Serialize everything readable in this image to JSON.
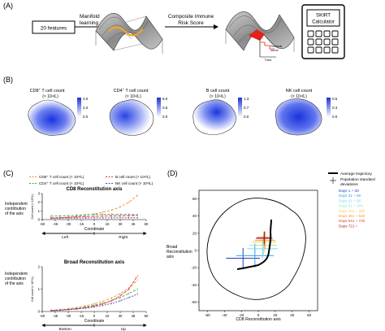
{
  "panel_a": {
    "letter": "(A)",
    "features_box": "20 features",
    "manifold_label": [
      "Manifold",
      "learning"
    ],
    "risk_label": [
      "Composite Immune",
      "Risk Score"
    ],
    "survival_label": [
      "Survival",
      "curve"
    ],
    "time_label": "Time",
    "calculator_label": [
      "SKIRT",
      "Calculator"
    ]
  },
  "panel_b": {
    "letter": "(B)",
    "maps": [
      {
        "title_pre": "CD8",
        "title_sup": "+",
        "title_post": " T cell count",
        "unit": "(× 10⁹/L)",
        "ticks": [
          "4.0",
          "2.0",
          "0.0"
        ]
      },
      {
        "title_pre": "CD4",
        "title_sup": "+",
        "title_post": " T cell count",
        "unit": "(× 10⁹/L)",
        "ticks": [
          "8.0",
          "0.5",
          "0.0"
        ]
      },
      {
        "title_pre": "B cell count",
        "title_sup": "",
        "title_post": "",
        "unit": "(× 10⁹/L)",
        "ticks": [
          "1.3",
          "0.7",
          "0.0"
        ]
      },
      {
        "title_pre": "NK cell count",
        "title_sup": "",
        "title_post": "",
        "unit": "(× 10⁹/L)",
        "ticks": [
          "0.5",
          "0.3",
          "0.0"
        ]
      }
    ]
  },
  "panel_c": {
    "letter": "(C)",
    "legend": [
      {
        "label": "CD8⁺ T cell count (× 10⁹/L)",
        "color": "#f28c28"
      },
      {
        "label": "B cell count (× 10⁹/L)",
        "color": "#e0322f"
      },
      {
        "label": "CD4⁺ T cell count (× 10⁹/L)",
        "color": "#34a853"
      },
      {
        "label": "NK cell count (× 10⁹/L)",
        "color": "#6b3fa0"
      }
    ],
    "side_label": [
      "Independent",
      "contribution",
      "of the axis"
    ],
    "ylabel": "Cell count (× 10⁹/L)",
    "xlabel": "Coordinate",
    "top": {
      "title": "CD8 Reconstitution axis",
      "x_ticks": [
        "-60",
        "-45",
        "-30",
        "-15",
        "0",
        "15",
        "30",
        "45",
        "60"
      ],
      "y_ticks": [
        "0",
        "1",
        "2",
        "3"
      ],
      "direction_left": "Left",
      "direction_right": "Right"
    },
    "bottom": {
      "title": "Broad Reconstitution axis",
      "x_ticks": [
        "-60",
        "-45",
        "-30",
        "-15",
        "0",
        "15",
        "30",
        "45",
        "60"
      ],
      "y_ticks": [
        "0",
        "1",
        "2"
      ],
      "direction_left": "Bottom",
      "direction_right": "Up"
    }
  },
  "panel_d": {
    "letter": "(D)",
    "legend_lines": [
      "Average trajectory",
      "Population standard",
      "deviations"
    ],
    "days": [
      {
        "label": "Days 1 ~ 30",
        "color": "#1f3fbf"
      },
      {
        "label": "Days 31 ~ 60",
        "color": "#34a0e0"
      },
      {
        "label": "Days 61 ~ 90",
        "color": "#7fd6f5"
      },
      {
        "label": "Days 91 ~ 180",
        "color": "#9be7c4"
      },
      {
        "label": "Days 181 ~ 360",
        "color": "#f2d34a"
      },
      {
        "label": "Days 361 ~ 540",
        "color": "#f29a2e"
      },
      {
        "label": "Days 541 ~ 720",
        "color": "#e03a2f"
      },
      {
        "label": "Days 721 ~",
        "color": "#9b1c1c"
      }
    ],
    "ylabel": [
      "Broad",
      "Reconstitution",
      "axis"
    ],
    "xlabel": "CD8 Reconstitution axis",
    "x_ticks": [
      "-60",
      "-40",
      "-20",
      "0",
      "20",
      "40",
      "60"
    ],
    "y_ticks": [
      "60",
      "40",
      "20",
      "0",
      "-20",
      "-40",
      "-60"
    ]
  },
  "chart_data": [
    {
      "type": "line",
      "title": "CD8 Reconstitution axis",
      "xlabel": "Coordinate",
      "ylabel": "Cell count (× 10⁹/L)",
      "x": [
        -50,
        -40,
        -30,
        -20,
        -10,
        0,
        10,
        20,
        30,
        40,
        50
      ],
      "xlim": [
        -60,
        60
      ],
      "ylim": [
        0,
        3
      ],
      "series": [
        {
          "name": "CD8⁺ T cell count (× 10⁹/L)",
          "values": [
            0.15,
            0.2,
            0.28,
            0.38,
            0.5,
            0.65,
            0.85,
            1.1,
            1.45,
            2.0,
            2.8
          ]
        },
        {
          "name": "CD4⁺ T cell count (× 10⁹/L)",
          "values": [
            0.4,
            0.42,
            0.45,
            0.5,
            0.55,
            0.6,
            0.62,
            0.62,
            0.6,
            0.58,
            0.55
          ]
        },
        {
          "name": "B cell count (× 10⁹/L)",
          "values": [
            0.2,
            0.22,
            0.25,
            0.3,
            0.34,
            0.38,
            0.4,
            0.42,
            0.44,
            0.46,
            0.5
          ]
        },
        {
          "name": "NK cell count (× 10⁹/L)",
          "values": [
            0.15,
            0.16,
            0.17,
            0.18,
            0.19,
            0.2,
            0.2,
            0.2,
            0.21,
            0.21,
            0.22
          ]
        }
      ]
    },
    {
      "type": "line",
      "title": "Broad Reconstitution axis",
      "xlabel": "Coordinate",
      "ylabel": "Cell count (× 10⁹/L)",
      "x": [
        -50,
        -40,
        -30,
        -20,
        -10,
        0,
        10,
        20,
        30,
        40,
        50
      ],
      "xlim": [
        -60,
        60
      ],
      "ylim": [
        0,
        2
      ],
      "series": [
        {
          "name": "CD8⁺ T cell count (× 10⁹/L)",
          "values": [
            0.05,
            0.08,
            0.12,
            0.18,
            0.25,
            0.35,
            0.45,
            0.6,
            0.8,
            1.05,
            1.4
          ]
        },
        {
          "name": "CD4⁺ T cell count (× 10⁹/L)",
          "values": [
            0.05,
            0.07,
            0.1,
            0.14,
            0.2,
            0.28,
            0.36,
            0.48,
            0.62,
            0.8,
            1.0
          ]
        },
        {
          "name": "B cell count (× 10⁹/L)",
          "values": [
            0.04,
            0.06,
            0.09,
            0.12,
            0.17,
            0.24,
            0.34,
            0.48,
            0.7,
            1.0,
            1.6
          ]
        },
        {
          "name": "NK cell count (× 10⁹/L)",
          "values": [
            0.03,
            0.05,
            0.08,
            0.11,
            0.15,
            0.2,
            0.27,
            0.36,
            0.48,
            0.62,
            0.78
          ]
        }
      ]
    }
  ]
}
